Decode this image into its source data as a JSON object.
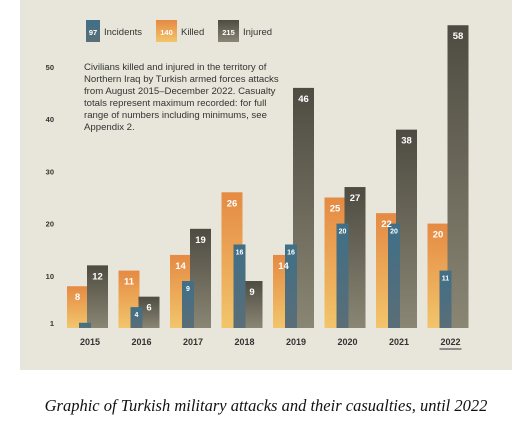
{
  "chart_data": {
    "type": "bar",
    "title": "",
    "xlabel": "",
    "ylabel": "",
    "categories": [
      "2015",
      "2016",
      "2017",
      "2018",
      "2019",
      "2020",
      "2021",
      "2022"
    ],
    "highlight_category": "2022",
    "series": [
      {
        "name": "Killed",
        "values": [
          8,
          11,
          14,
          26,
          14,
          25,
          22,
          20
        ],
        "color": "#e58a43",
        "color_light": "#f2c56b"
      },
      {
        "name": "Incidents",
        "values": [
          1,
          4,
          9,
          16,
          16,
          20,
          20,
          11
        ],
        "color": "#3f6f88",
        "color_light": "#5a6e77"
      },
      {
        "name": "Injured",
        "values": [
          12,
          6,
          19,
          9,
          46,
          27,
          38,
          58
        ],
        "color": "#4e4c42",
        "color_light": "#8a8674"
      }
    ],
    "legend_samples": [
      "97",
      "140",
      "215"
    ],
    "data_labels": {
      "Killed": [
        "8",
        "11",
        "14",
        "26",
        "14",
        "25",
        "22",
        "20"
      ],
      "Incidents": [
        "",
        "4",
        "9",
        "16",
        "16",
        "20",
        "20",
        "11"
      ],
      "Injured": [
        "12",
        "6",
        "19",
        "9",
        "46",
        "27",
        "38",
        "58"
      ]
    },
    "y_ticks": [
      1,
      10,
      20,
      30,
      40,
      50
    ],
    "ylim": [
      0,
      58
    ],
    "legend_position": "top-left",
    "grid": false,
    "annotation": "Civilians killed and injured in the territory of Northern Iraq by Turkish armed forces attacks from August 2015–December 2022. Casualty totals represent maximum recorded: for full range of numbers including minimums, see Appendix 2."
  },
  "caption": "Graphic of Turkish military attacks and their casualties, until 2022",
  "colors": {
    "panel_background": "#e8e6da",
    "page_background": "#ffffff",
    "label_text": "#333333",
    "bar_label_text": "#ffffff"
  }
}
